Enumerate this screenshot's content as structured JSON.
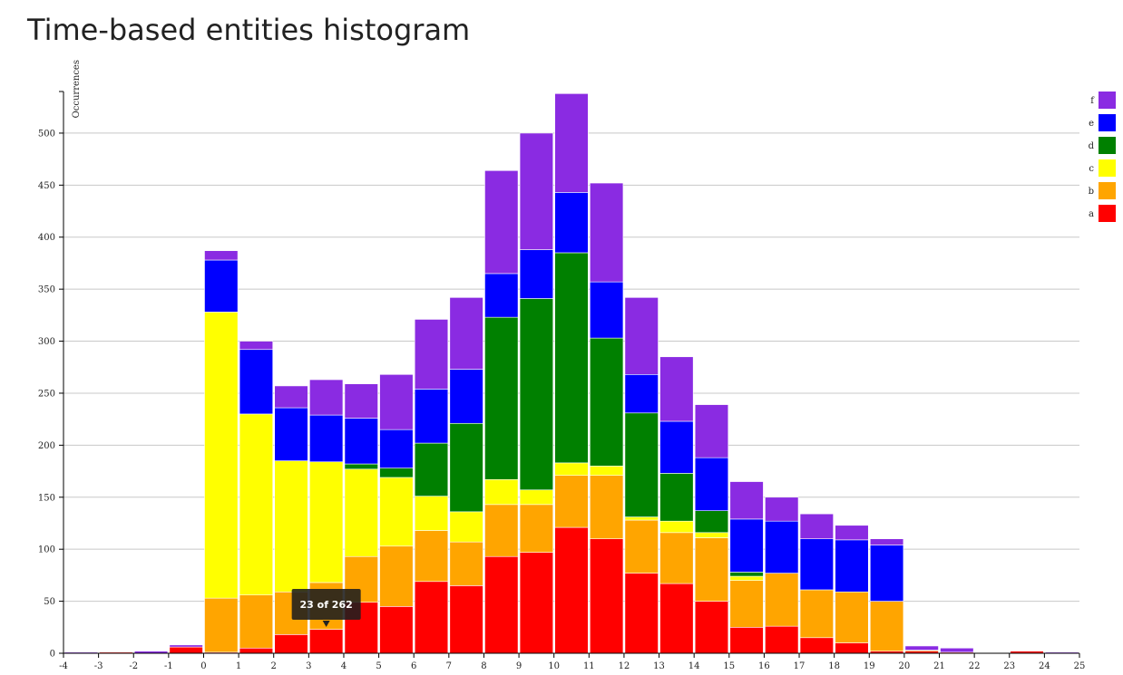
{
  "page": {
    "title": "Time-based entities histogram"
  },
  "chart_data": {
    "type": "bar",
    "stacked": true,
    "title": "Time-based entities histogram",
    "xlabel": "",
    "ylabel": "Occurrences",
    "xlim": [
      -4,
      25
    ],
    "ylim": [
      0,
      540
    ],
    "x_ticks": [
      -4,
      -3,
      -2,
      -1,
      0,
      1,
      2,
      3,
      4,
      5,
      6,
      7,
      8,
      9,
      10,
      11,
      12,
      13,
      14,
      15,
      16,
      17,
      18,
      19,
      20,
      21,
      22,
      23,
      24,
      25
    ],
    "y_ticks": [
      0,
      50,
      100,
      150,
      200,
      250,
      300,
      350,
      400,
      450,
      500
    ],
    "grid": "horizontal",
    "legend_position": "right",
    "bins_start": [
      -4,
      -3,
      -2,
      -1,
      0,
      1,
      2,
      3,
      4,
      5,
      6,
      7,
      8,
      9,
      10,
      11,
      12,
      13,
      14,
      15,
      16,
      17,
      18,
      19,
      20,
      21,
      22,
      23,
      24
    ],
    "series": [
      {
        "name": "a",
        "color": "#ff0000",
        "values": [
          0,
          1,
          0,
          6,
          1,
          5,
          18,
          23,
          49,
          45,
          69,
          65,
          93,
          97,
          121,
          110,
          77,
          67,
          50,
          25,
          26,
          15,
          10,
          2,
          2,
          1,
          0,
          2,
          0
        ]
      },
      {
        "name": "b",
        "color": "#ffa500",
        "values": [
          0,
          0,
          0,
          0,
          52,
          51,
          41,
          45,
          44,
          58,
          49,
          42,
          50,
          46,
          50,
          61,
          51,
          49,
          61,
          45,
          51,
          46,
          49,
          48,
          1,
          0,
          0,
          0,
          0
        ]
      },
      {
        "name": "c",
        "color": "#ffff00",
        "values": [
          0,
          0,
          0,
          0,
          275,
          174,
          126,
          116,
          84,
          66,
          33,
          29,
          24,
          14,
          12,
          9,
          3,
          11,
          5,
          4,
          0,
          0,
          0,
          0,
          0,
          0,
          0,
          0,
          0
        ]
      },
      {
        "name": "d",
        "color": "#008000",
        "values": [
          0,
          0,
          0,
          0,
          0,
          0,
          0,
          0,
          5,
          9,
          51,
          85,
          156,
          184,
          202,
          123,
          100,
          46,
          21,
          4,
          0,
          0,
          0,
          0,
          0,
          0,
          0,
          0,
          0
        ]
      },
      {
        "name": "e",
        "color": "#0000ff",
        "values": [
          0,
          0,
          0,
          0,
          50,
          62,
          51,
          45,
          44,
          37,
          52,
          52,
          42,
          47,
          58,
          54,
          37,
          50,
          51,
          51,
          50,
          49,
          50,
          54,
          0,
          0,
          0,
          0,
          0
        ]
      },
      {
        "name": "f",
        "color": "#8a2be2",
        "values": [
          1,
          0,
          2,
          2,
          9,
          8,
          21,
          34,
          33,
          53,
          67,
          69,
          99,
          112,
          95,
          95,
          74,
          62,
          51,
          36,
          23,
          24,
          14,
          6,
          4,
          4,
          0,
          0,
          1
        ]
      }
    ],
    "tooltip": {
      "text": "23 of 262",
      "bin": 3,
      "series": "a"
    }
  }
}
